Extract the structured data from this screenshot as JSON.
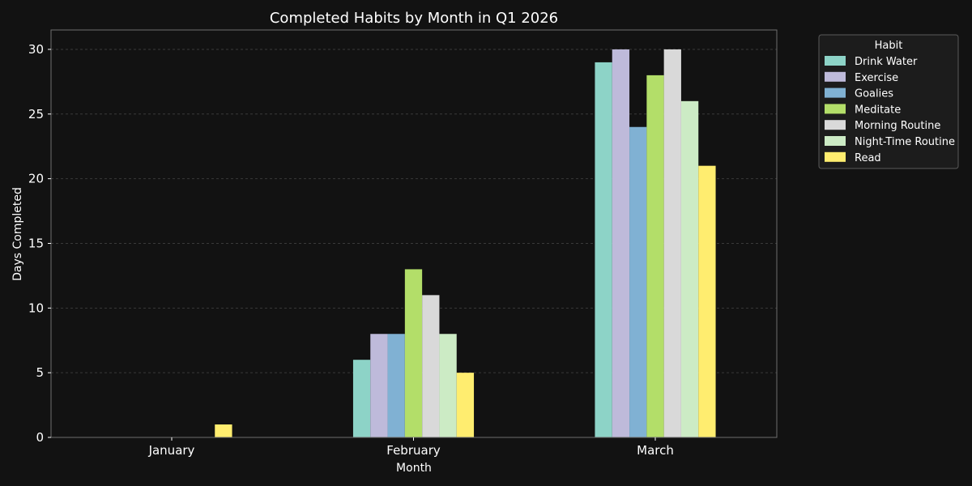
{
  "chart_data": {
    "type": "bar",
    "title": "Completed Habits by Month in Q1 2026",
    "xlabel": "Month",
    "ylabel": "Days Completed",
    "categories": [
      "January",
      "February",
      "March"
    ],
    "ylim": [
      0,
      31.5
    ],
    "yticks": [
      0,
      5,
      10,
      15,
      20,
      25,
      30
    ],
    "grid": true,
    "legend_title": "Habit",
    "legend_position": "outside-top-right",
    "series": [
      {
        "name": "Drink Water",
        "color": "#8dd3c7",
        "values": [
          0,
          6,
          29
        ]
      },
      {
        "name": "Exercise",
        "color": "#bebada",
        "values": [
          0,
          8,
          30
        ]
      },
      {
        "name": "Goalies",
        "color": "#80b1d3",
        "values": [
          0,
          8,
          24
        ]
      },
      {
        "name": "Meditate",
        "color": "#b3de69",
        "values": [
          0,
          13,
          28
        ]
      },
      {
        "name": "Morning Routine",
        "color": "#d9d9d9",
        "values": [
          0,
          11,
          30
        ]
      },
      {
        "name": "Night-Time Routine",
        "color": "#ccebc5",
        "values": [
          0,
          8,
          26
        ]
      },
      {
        "name": "Read",
        "color": "#ffed6f",
        "values": [
          1,
          5,
          21
        ]
      }
    ]
  }
}
